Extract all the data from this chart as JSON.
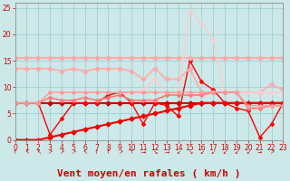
{
  "xlabel": "Vent moyen/en rafales ( km/h )",
  "xlim": [
    0,
    23
  ],
  "ylim": [
    0,
    26
  ],
  "yticks": [
    0,
    5,
    10,
    15,
    20,
    25
  ],
  "xticks": [
    0,
    1,
    2,
    3,
    4,
    5,
    6,
    7,
    8,
    9,
    10,
    11,
    12,
    13,
    14,
    15,
    16,
    17,
    18,
    19,
    20,
    21,
    22,
    23
  ],
  "bg_color": "#cce8e8",
  "grid_color": "#99cccc",
  "lines": [
    {
      "comment": "flat dark red line at ~7",
      "x": [
        0,
        1,
        2,
        3,
        4,
        5,
        6,
        7,
        8,
        9,
        10,
        11,
        12,
        13,
        14,
        15,
        16,
        17,
        18,
        19,
        20,
        21,
        22,
        23
      ],
      "y": [
        7,
        7,
        7,
        7,
        7,
        7,
        7,
        7,
        7,
        7,
        7,
        7,
        7,
        7,
        7,
        7,
        7,
        7,
        7,
        7,
        7,
        7,
        7,
        7
      ],
      "color": "#cc0000",
      "lw": 1.5,
      "marker": "D",
      "ms": 2.5
    },
    {
      "comment": "diagonal dark red rising from 0 to ~7",
      "x": [
        0,
        1,
        2,
        3,
        4,
        5,
        6,
        7,
        8,
        9,
        10,
        11,
        12,
        13,
        14,
        15,
        16,
        17,
        18,
        19,
        20,
        21,
        22,
        23
      ],
      "y": [
        0,
        0,
        0,
        0.5,
        1.0,
        1.5,
        2.0,
        2.5,
        3.0,
        3.5,
        4.0,
        4.5,
        5.0,
        5.5,
        6.0,
        6.5,
        7.0,
        7.0,
        7.0,
        7.0,
        7.0,
        7.0,
        7.0,
        7.0
      ],
      "color": "#ee0000",
      "lw": 1.5,
      "marker": "D",
      "ms": 2.5
    },
    {
      "comment": "bright red jagged line - main volatile one",
      "x": [
        0,
        1,
        2,
        3,
        4,
        5,
        6,
        7,
        8,
        9,
        10,
        11,
        12,
        13,
        14,
        15,
        16,
        17,
        18,
        19,
        20,
        21,
        22,
        23
      ],
      "y": [
        7,
        7,
        7,
        1,
        4,
        7,
        7,
        7,
        8.5,
        9,
        7,
        3,
        7,
        6.5,
        4.5,
        15,
        11,
        9.5,
        7,
        6,
        5.5,
        0.5,
        3,
        7
      ],
      "color": "#ff0000",
      "lw": 1.0,
      "marker": "D",
      "ms": 2.0
    },
    {
      "comment": "flat light pink at ~15.5",
      "x": [
        0,
        1,
        2,
        3,
        4,
        5,
        6,
        7,
        8,
        9,
        10,
        11,
        12,
        13,
        14,
        15,
        16,
        17,
        18,
        19,
        20,
        21,
        22,
        23
      ],
      "y": [
        15.5,
        15.5,
        15.5,
        15.5,
        15.5,
        15.5,
        15.5,
        15.5,
        15.5,
        15.5,
        15.5,
        15.5,
        15.5,
        15.5,
        15.5,
        15.5,
        15.5,
        15.5,
        15.5,
        15.5,
        15.5,
        15.5,
        15.5,
        15.5
      ],
      "color": "#ffaaaa",
      "lw": 1.5,
      "marker": "D",
      "ms": 2.5
    },
    {
      "comment": "light pink declining from ~13 to ~9-10",
      "x": [
        0,
        1,
        2,
        3,
        4,
        5,
        6,
        7,
        8,
        9,
        10,
        11,
        12,
        13,
        14,
        15,
        16,
        17,
        18,
        19,
        20,
        21,
        22,
        23
      ],
      "y": [
        13.5,
        13.5,
        13.5,
        13.5,
        13.0,
        13.5,
        13.0,
        13.5,
        13.5,
        13.5,
        13.0,
        11.5,
        13.5,
        11.5,
        11.5,
        13.5,
        9.0,
        9.0,
        9.0,
        9.0,
        9.0,
        9.0,
        10.5,
        9.5
      ],
      "color": "#ffaaaa",
      "lw": 1.2,
      "marker": "D",
      "ms": 2.5
    },
    {
      "comment": "faint pink peaking at 24.5 at x=15",
      "x": [
        0,
        1,
        2,
        3,
        4,
        5,
        6,
        7,
        8,
        9,
        10,
        11,
        12,
        13,
        14,
        15,
        16,
        17,
        18,
        19,
        20,
        21,
        22,
        23
      ],
      "y": [
        7,
        7,
        7,
        9,
        9,
        9,
        9,
        9,
        9,
        9,
        9,
        9.5,
        11.5,
        9,
        9,
        24.5,
        22,
        19,
        9,
        9,
        9,
        9,
        9,
        9
      ],
      "color": "#ffcccc",
      "lw": 1.0,
      "marker": "D",
      "ms": 2.0
    },
    {
      "comment": "medium pink gently rising ~7 to ~9",
      "x": [
        0,
        1,
        2,
        3,
        4,
        5,
        6,
        7,
        8,
        9,
        10,
        11,
        12,
        13,
        14,
        15,
        16,
        17,
        18,
        19,
        20,
        21,
        22,
        23
      ],
      "y": [
        7,
        7,
        7,
        8,
        7.5,
        7.5,
        8,
        7.5,
        8,
        8.5,
        7.5,
        7.5,
        7.5,
        8.5,
        8.5,
        8.5,
        8.5,
        9,
        9,
        9,
        6,
        6,
        6.5,
        6.5
      ],
      "color": "#ff7777",
      "lw": 1.2,
      "marker": "D",
      "ms": 2.0
    },
    {
      "comment": "medium-light pink band ~7 rising to ~9 then drops",
      "x": [
        0,
        1,
        2,
        3,
        4,
        5,
        6,
        7,
        8,
        9,
        10,
        11,
        12,
        13,
        14,
        15,
        16,
        17,
        18,
        19,
        20,
        21,
        22,
        23
      ],
      "y": [
        7,
        7,
        7,
        9,
        9,
        9,
        9,
        9,
        9,
        9,
        9,
        9,
        9,
        9,
        9,
        9,
        9,
        9,
        9,
        9,
        6.5,
        6.5,
        6.5,
        6.5
      ],
      "color": "#ff9999",
      "lw": 1.0,
      "marker": "D",
      "ms": 2.0
    }
  ],
  "arrow_symbols": [
    "↑",
    "↖",
    "↖",
    "↗",
    "↗",
    "↗",
    "↖",
    "↑",
    "↑",
    "↗",
    "↑",
    "→",
    "↘",
    "→",
    "↙",
    "↘",
    "↙",
    "↙",
    "↙",
    "↙",
    "↙",
    "→",
    "↗"
  ],
  "xlabel_color": "#cc0000",
  "xlabel_fontsize": 8
}
